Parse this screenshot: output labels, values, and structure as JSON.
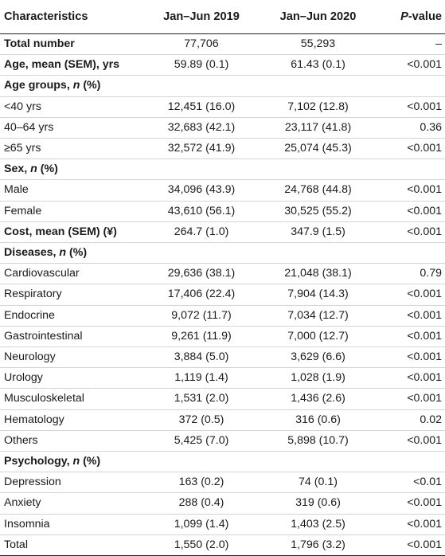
{
  "header": {
    "col0": "Characteristics",
    "col1": "Jan–Jun 2019",
    "col2": "Jan–Jun 2020",
    "col3_italic": "P",
    "col3_rest": "-value"
  },
  "rows": [
    {
      "type": "bold",
      "label": "Total number",
      "v2019": "77,706",
      "v2020": "55,293",
      "p": "–"
    },
    {
      "type": "bold",
      "label": "Age, mean (SEM), yrs",
      "v2019": "59.89 (0.1)",
      "v2020": "61.43 (0.1)",
      "p": "<0.001"
    },
    {
      "type": "section",
      "pre": "Age groups, ",
      "n": "n",
      "post": " (%)"
    },
    {
      "type": "data",
      "label": "<40 yrs",
      "v2019": "12,451 (16.0)",
      "v2020": "7,102 (12.8)",
      "p": "<0.001"
    },
    {
      "type": "data",
      "label": "40–64 yrs",
      "v2019": "32,683 (42.1)",
      "v2020": "23,117 (41.8)",
      "p": "0.36"
    },
    {
      "type": "data",
      "label": "≥65 yrs",
      "v2019": "32,572 (41.9)",
      "v2020": "25,074 (45.3)",
      "p": "<0.001"
    },
    {
      "type": "section",
      "pre": "Sex, ",
      "n": "n",
      "post": " (%)"
    },
    {
      "type": "data",
      "label": "Male",
      "v2019": "34,096 (43.9)",
      "v2020": "24,768 (44.8)",
      "p": "<0.001"
    },
    {
      "type": "data",
      "label": "Female",
      "v2019": "43,610 (56.1)",
      "v2020": "30,525 (55.2)",
      "p": "<0.001"
    },
    {
      "type": "bold",
      "label": "Cost, mean (SEM) (¥)",
      "v2019": "264.7 (1.0)",
      "v2020": "347.9 (1.5)",
      "p": "<0.001"
    },
    {
      "type": "section",
      "pre": "Diseases, ",
      "n": "n",
      "post": " (%)"
    },
    {
      "type": "data",
      "label": "Cardiovascular",
      "v2019": "29,636 (38.1)",
      "v2020": "21,048 (38.1)",
      "p": "0.79"
    },
    {
      "type": "data",
      "label": "Respiratory",
      "v2019": "17,406 (22.4)",
      "v2020": "7,904 (14.3)",
      "p": "<0.001"
    },
    {
      "type": "data",
      "label": "Endocrine",
      "v2019": "9,072 (11.7)",
      "v2020": "7,034 (12.7)",
      "p": "<0.001"
    },
    {
      "type": "data",
      "label": "Gastrointestinal",
      "v2019": "9,261 (11.9)",
      "v2020": "7,000 (12.7)",
      "p": "<0.001"
    },
    {
      "type": "data",
      "label": "Neurology",
      "v2019": "3,884 (5.0)",
      "v2020": "3,629 (6.6)",
      "p": "<0.001"
    },
    {
      "type": "data",
      "label": "Urology",
      "v2019": "1,119 (1.4)",
      "v2020": "1,028 (1.9)",
      "p": "<0.001"
    },
    {
      "type": "data",
      "label": "Musculoskeletal",
      "v2019": "1,531 (2.0)",
      "v2020": "1,436 (2.6)",
      "p": "<0.001"
    },
    {
      "type": "data",
      "label": "Hematology",
      "v2019": "372 (0.5)",
      "v2020": "316 (0.6)",
      "p": "0.02"
    },
    {
      "type": "data",
      "label": "Others",
      "v2019": "5,425 (7.0)",
      "v2020": "5,898 (10.7)",
      "p": "<0.001"
    },
    {
      "type": "section",
      "pre": "Psychology, ",
      "n": "n",
      "post": " (%)"
    },
    {
      "type": "data",
      "label": "Depression",
      "v2019": "163 (0.2)",
      "v2020": "74 (0.1)",
      "p": "<0.01"
    },
    {
      "type": "data",
      "label": "Anxiety",
      "v2019": "288 (0.4)",
      "v2020": "319 (0.6)",
      "p": "<0.001"
    },
    {
      "type": "data",
      "label": "Insomnia",
      "v2019": "1,099 (1.4)",
      "v2020": "1,403 (2.5)",
      "p": "<0.001"
    },
    {
      "type": "data",
      "label": "Total",
      "v2019": "1,550 (2.0)",
      "v2020": "1,796 (3.2)",
      "p": "<0.001"
    }
  ]
}
